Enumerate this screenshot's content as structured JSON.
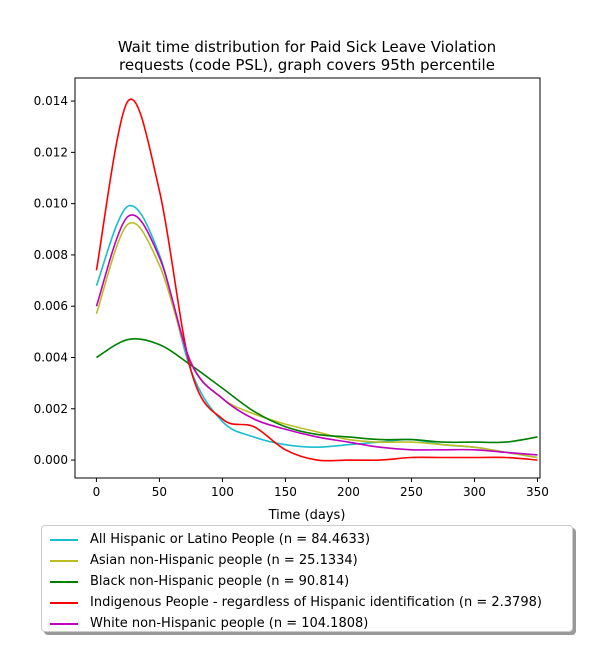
{
  "chart_data": {
    "type": "line",
    "title": "Wait time distribution  for Paid Sick Leave Violation\nrequests (code PSL), graph covers 95th percentile",
    "xlabel": "Time (days)",
    "ylabel": "",
    "xlim": [
      -17,
      352
    ],
    "ylim": [
      -0.0007,
      0.0149
    ],
    "x_ticks": [
      0,
      50,
      100,
      150,
      200,
      250,
      300,
      350
    ],
    "y_ticks": [
      0.0,
      0.002,
      0.004,
      0.006,
      0.008,
      0.01,
      0.012,
      0.014
    ],
    "y_tick_labels": [
      "0.000",
      "0.002",
      "0.004",
      "0.006",
      "0.008",
      "0.010",
      "0.012",
      "0.014"
    ],
    "grid": false,
    "legend_position": "below",
    "x": [
      0,
      25,
      50,
      75,
      100,
      125,
      150,
      175,
      200,
      225,
      250,
      275,
      300,
      325,
      350
    ],
    "series": [
      {
        "name": "All Hispanic or Latino People (n = 84.4633)",
        "color": "#17becf",
        "values": [
          0.0068,
          0.0099,
          0.008,
          0.0035,
          0.0015,
          0.0009,
          0.0006,
          0.0005,
          0.0006,
          0.0007,
          0.0008,
          0.0006,
          0.0005,
          0.0003,
          0.0001
        ]
      },
      {
        "name": "Asian non-Hispanic people (n = 25.1334)",
        "color": "#bcbd22",
        "values": [
          0.0057,
          0.0092,
          0.0076,
          0.0038,
          0.0024,
          0.0018,
          0.0014,
          0.0011,
          0.0008,
          0.0007,
          0.0007,
          0.0006,
          0.0005,
          0.0003,
          0.0001
        ]
      },
      {
        "name": "Black non-Hispanic people (n = 90.814)",
        "color": "#008000",
        "values": [
          0.004,
          0.0047,
          0.0045,
          0.0037,
          0.0028,
          0.0019,
          0.0013,
          0.001,
          0.0009,
          0.0008,
          0.0008,
          0.0007,
          0.0007,
          0.0007,
          0.0009
        ]
      },
      {
        "name": "Indigenous People - regardless of Hispanic identification (n = 2.3798)",
        "color": "#ff0000",
        "values": [
          0.0074,
          0.014,
          0.0105,
          0.0035,
          0.0016,
          0.0013,
          0.0004,
          0.0,
          0.0,
          0.0,
          0.0001,
          0.0001,
          0.0001,
          0.0001,
          0.0
        ]
      },
      {
        "name": "White non-Hispanic people (n = 104.1808)",
        "color": "#bf00bf",
        "values": [
          0.006,
          0.0095,
          0.0079,
          0.0038,
          0.0024,
          0.0016,
          0.0012,
          0.0009,
          0.0007,
          0.0005,
          0.0004,
          0.0004,
          0.0004,
          0.0003,
          0.0002
        ]
      }
    ]
  }
}
